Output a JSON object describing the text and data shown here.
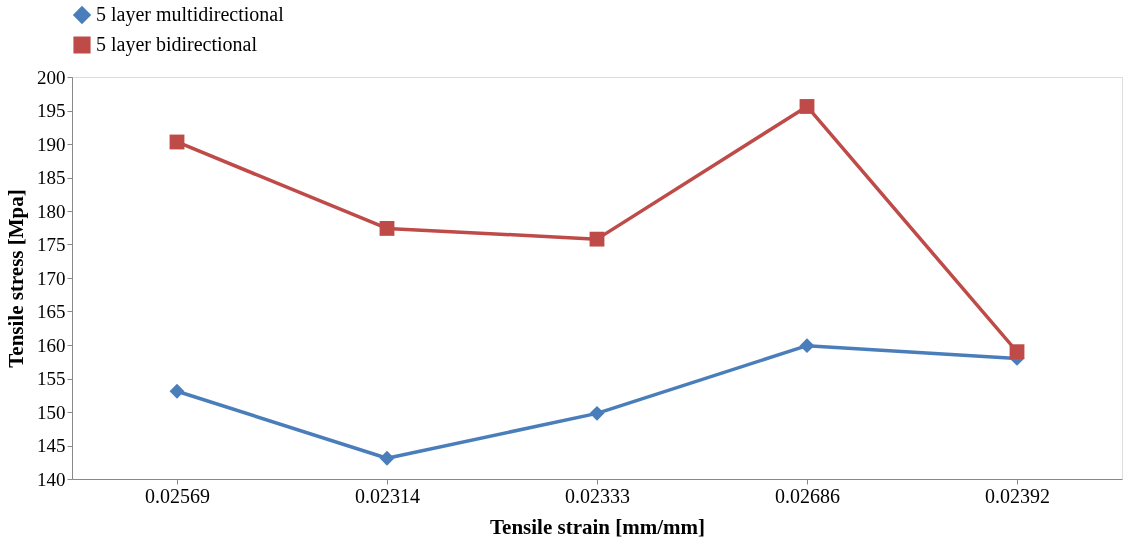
{
  "chart_data": {
    "type": "line",
    "xlabel": "Tensile strain [mm/mm]",
    "ylabel": "Tensile stress [Mpa]",
    "categories": [
      "0.02569",
      "0.02314",
      "0.02333",
      "0.02686",
      "0.02392"
    ],
    "series": [
      {
        "name": "5 layer multidirectional",
        "color": "#4a7ebb",
        "marker": "diamond",
        "values": [
          153.1,
          143.1,
          149.8,
          159.9,
          158
        ]
      },
      {
        "name": "5 layer bidirectional",
        "color": "#be4b48",
        "marker": "square",
        "values": [
          190.3,
          177.4,
          175.8,
          195.6,
          159
        ]
      }
    ],
    "ylim": [
      140,
      200
    ],
    "yticks": [
      140,
      145,
      150,
      155,
      160,
      165,
      170,
      175,
      180,
      185,
      190,
      195,
      200
    ],
    "grid": false,
    "legend": "top",
    "line_style": "solid"
  }
}
